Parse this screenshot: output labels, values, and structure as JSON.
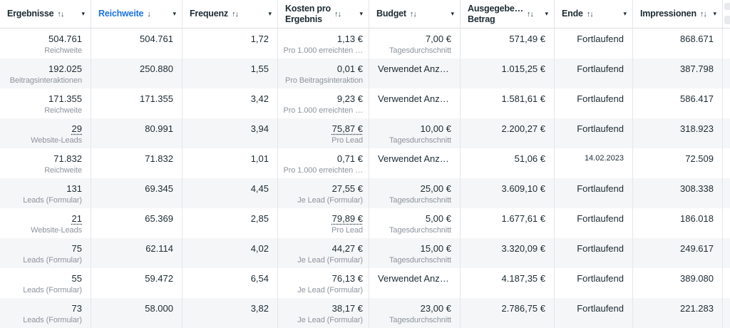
{
  "icons": {
    "caret": "▾",
    "sort_both": "↑↓",
    "sort_desc": "↓"
  },
  "colors": {
    "sorted_column_blue": "#1b74e4",
    "text_dark": "#1c2b33",
    "text_sublabel_gray": "#8d949e",
    "row_stripe": "#f5f6f7",
    "column_border": "#e4e6eb"
  },
  "table": {
    "columns": [
      {
        "id": "ergebnisse",
        "label": "Ergebnisse",
        "sort_icon": "↑↓",
        "sorted": false
      },
      {
        "id": "reichweite",
        "label": "Reichweite",
        "sort_icon": "↓",
        "sorted": true
      },
      {
        "id": "frequenz",
        "label": "Frequenz",
        "sort_icon": "↑↓",
        "sorted": false
      },
      {
        "id": "kosten-pro-ergebnis",
        "label_lines": [
          "Kosten pro",
          "Ergebnis"
        ],
        "sort_icon": "↑↓",
        "sorted": false
      },
      {
        "id": "budget",
        "label": "Budget",
        "sort_icon": "↑↓",
        "sorted": false
      },
      {
        "id": "ausgegebener-betrag",
        "label_lines": [
          "Ausgegebe…",
          "Betrag"
        ],
        "sort_icon": "↑↓",
        "sorted": false
      },
      {
        "id": "ende",
        "label": "Ende",
        "sort_icon": "↑↓",
        "sorted": false
      },
      {
        "id": "impressionen",
        "label": "Impressionen",
        "sort_icon": "↑↓",
        "sorted": false
      }
    ],
    "rows": [
      {
        "ergebnisse": {
          "value": "504.761",
          "sub": "Reichweite",
          "underline": false
        },
        "reichweite": "504.761",
        "frequenz": "1,72",
        "kosten": {
          "value": "1,13 €",
          "sub": "Pro 1.000 erreichten …",
          "underline": false
        },
        "budget": {
          "value": "7,00 €",
          "sub": "Tagesdurchschnitt"
        },
        "ausgegeben": "571,49 €",
        "ende": {
          "value": "Fortlaufend",
          "small": false
        },
        "impressionen": "868.671"
      },
      {
        "ergebnisse": {
          "value": "192.025",
          "sub": "Beitragsinteraktionen",
          "underline": false
        },
        "reichweite": "250.880",
        "frequenz": "1,55",
        "kosten": {
          "value": "0,01 €",
          "sub": "Pro Beitragsinteraktion",
          "underline": false
        },
        "budget": {
          "text": "Verwendet Anz…"
        },
        "ausgegeben": "1.015,25 €",
        "ende": {
          "value": "Fortlaufend",
          "small": false
        },
        "impressionen": "387.798"
      },
      {
        "ergebnisse": {
          "value": "171.355",
          "sub": "Reichweite",
          "underline": false
        },
        "reichweite": "171.355",
        "frequenz": "3,42",
        "kosten": {
          "value": "9,23 €",
          "sub": "Pro 1.000 erreichten …",
          "underline": false
        },
        "budget": {
          "text": "Verwendet Anz…"
        },
        "ausgegeben": "1.581,61 €",
        "ende": {
          "value": "Fortlaufend",
          "small": false
        },
        "impressionen": "586.417"
      },
      {
        "ergebnisse": {
          "value": "29",
          "sub": "Website-Leads",
          "underline": true
        },
        "reichweite": "80.991",
        "frequenz": "3,94",
        "kosten": {
          "value": "75,87 €",
          "sub": "Pro Lead",
          "underline": true
        },
        "budget": {
          "value": "10,00 €",
          "sub": "Tagesdurchschnitt"
        },
        "ausgegeben": "2.200,27 €",
        "ende": {
          "value": "Fortlaufend",
          "small": false
        },
        "impressionen": "318.923"
      },
      {
        "ergebnisse": {
          "value": "71.832",
          "sub": "Reichweite",
          "underline": false
        },
        "reichweite": "71.832",
        "frequenz": "1,01",
        "kosten": {
          "value": "0,71 €",
          "sub": "Pro 1.000 erreichten …",
          "underline": false
        },
        "budget": {
          "text": "Verwendet Anz…"
        },
        "ausgegeben": "51,06 €",
        "ende": {
          "value": "14.02.2023",
          "small": true
        },
        "impressionen": "72.509"
      },
      {
        "ergebnisse": {
          "value": "131",
          "sub": "Leads (Formular)",
          "underline": false
        },
        "reichweite": "69.345",
        "frequenz": "4,45",
        "kosten": {
          "value": "27,55 €",
          "sub": "Je Lead (Formular)",
          "underline": false
        },
        "budget": {
          "value": "25,00 €",
          "sub": "Tagesdurchschnitt"
        },
        "ausgegeben": "3.609,10 €",
        "ende": {
          "value": "Fortlaufend",
          "small": false
        },
        "impressionen": "308.338"
      },
      {
        "ergebnisse": {
          "value": "21",
          "sub": "Website-Leads",
          "underline": true
        },
        "reichweite": "65.369",
        "frequenz": "2,85",
        "kosten": {
          "value": "79,89 €",
          "sub": "Pro Lead",
          "underline": true
        },
        "budget": {
          "value": "5,00 €",
          "sub": "Tagesdurchschnitt"
        },
        "ausgegeben": "1.677,61 €",
        "ende": {
          "value": "Fortlaufend",
          "small": false
        },
        "impressionen": "186.018"
      },
      {
        "ergebnisse": {
          "value": "75",
          "sub": "Leads (Formular)",
          "underline": false
        },
        "reichweite": "62.114",
        "frequenz": "4,02",
        "kosten": {
          "value": "44,27 €",
          "sub": "Je Lead (Formular)",
          "underline": false
        },
        "budget": {
          "value": "15,00 €",
          "sub": "Tagesdurchschnitt"
        },
        "ausgegeben": "3.320,09 €",
        "ende": {
          "value": "Fortlaufend",
          "small": false
        },
        "impressionen": "249.617"
      },
      {
        "ergebnisse": {
          "value": "55",
          "sub": "Leads (Formular)",
          "underline": false
        },
        "reichweite": "59.472",
        "frequenz": "6,54",
        "kosten": {
          "value": "76,13 €",
          "sub": "Je Lead (Formular)",
          "underline": false
        },
        "budget": {
          "text": "Verwendet Anz…"
        },
        "ausgegeben": "4.187,35 €",
        "ende": {
          "value": "Fortlaufend",
          "small": false
        },
        "impressionen": "389.080"
      },
      {
        "ergebnisse": {
          "value": "73",
          "sub": "Leads (Formular)",
          "underline": false
        },
        "reichweite": "58.000",
        "frequenz": "3,82",
        "kosten": {
          "value": "38,17 €",
          "sub": "Je Lead (Formular)",
          "underline": false
        },
        "budget": {
          "value": "23,00 €",
          "sub": "Tagesdurchschnitt"
        },
        "ausgegeben": "2.786,75 €",
        "ende": {
          "value": "Fortlaufend",
          "small": false
        },
        "impressionen": "221.283"
      }
    ]
  }
}
